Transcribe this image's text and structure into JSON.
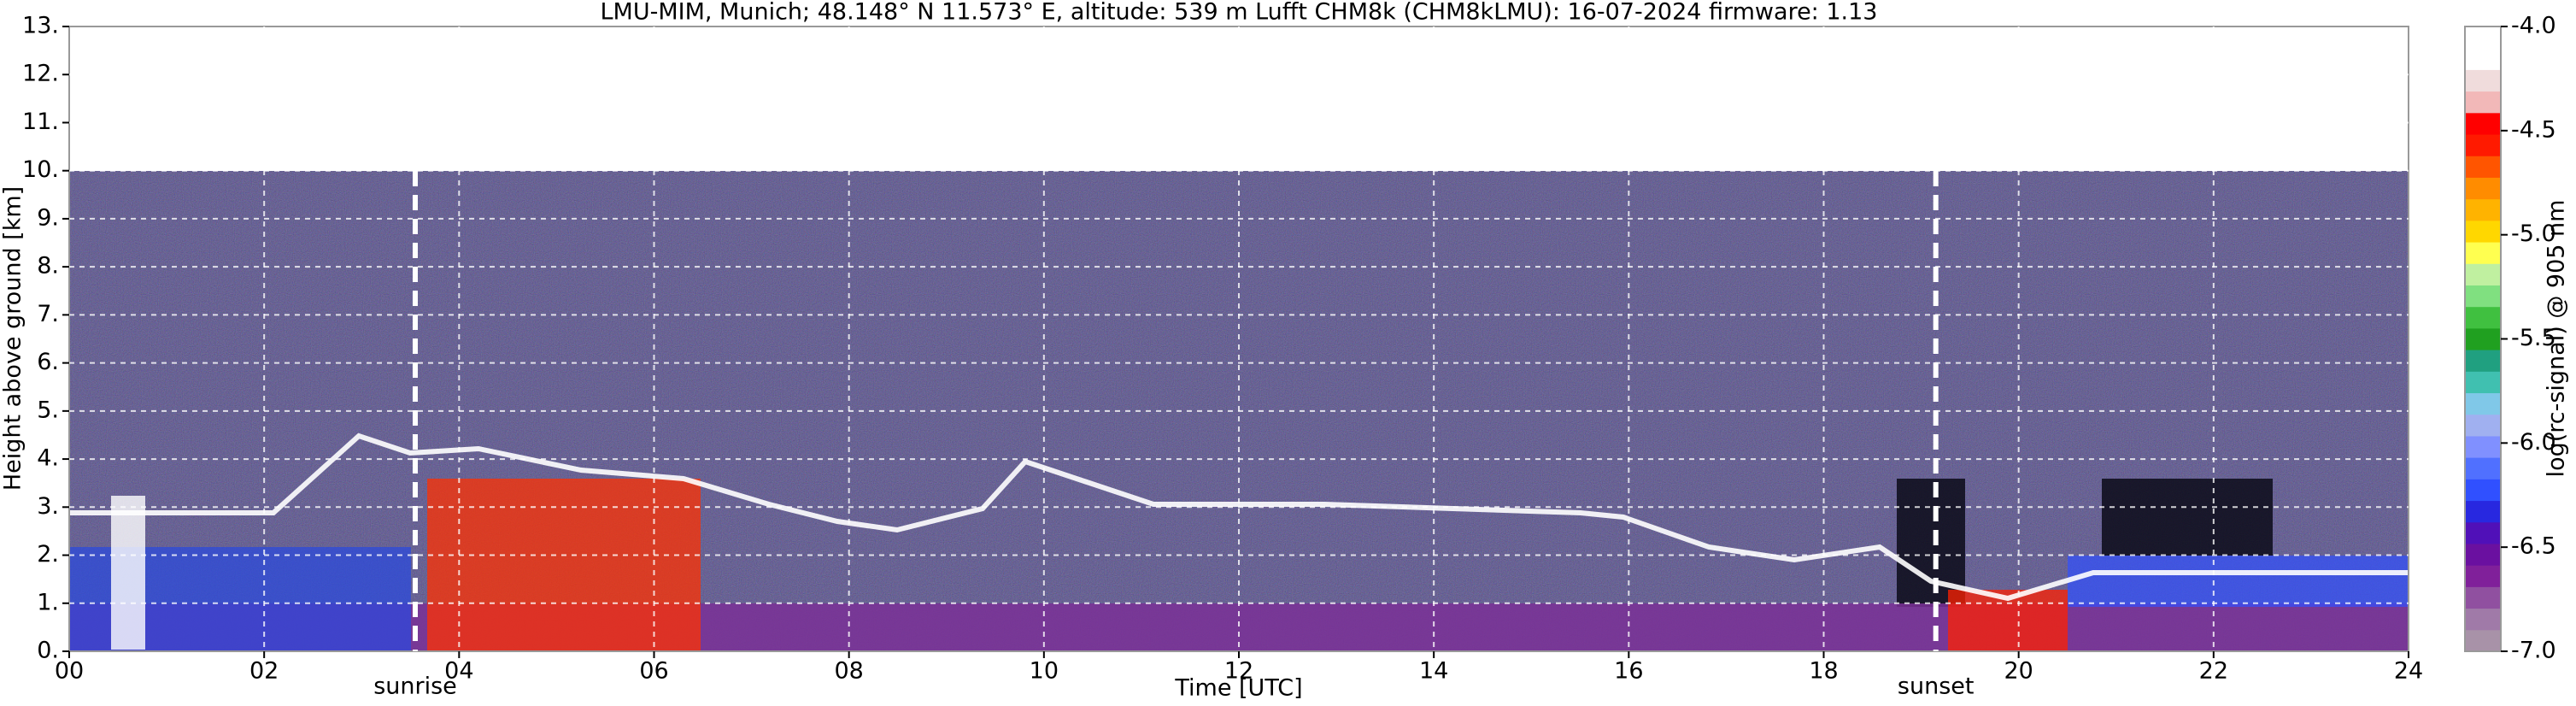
{
  "chart_data": {
    "type": "heatmap",
    "title": "LMU-MIM, Munich; 48.148° N 11.573° E, altitude: 539 m    Lufft CHM8k (CHM8kLMU): 16-07-2024    firmware: 1.13",
    "x_label": "Time [UTC]",
    "y_label": "Height above ground [km]",
    "xlim": [
      0,
      24
    ],
    "xticks": [
      {
        "value": 0,
        "label": "00"
      },
      {
        "value": 2,
        "label": "02"
      },
      {
        "value": 4,
        "label": "04"
      },
      {
        "value": 6,
        "label": "06"
      },
      {
        "value": 8,
        "label": "08"
      },
      {
        "value": 10,
        "label": "10"
      },
      {
        "value": 12,
        "label": "12"
      },
      {
        "value": 14,
        "label": "14"
      },
      {
        "value": 16,
        "label": "16"
      },
      {
        "value": 18,
        "label": "18"
      },
      {
        "value": 20,
        "label": "20"
      },
      {
        "value": 22,
        "label": "22"
      },
      {
        "value": 24,
        "label": "24"
      }
    ],
    "ylim": [
      0,
      13
    ],
    "yticks": [
      {
        "value": 0,
        "label": "0."
      },
      {
        "value": 1,
        "label": "1."
      },
      {
        "value": 2,
        "label": "2."
      },
      {
        "value": 3,
        "label": "3."
      },
      {
        "value": 4,
        "label": "4."
      },
      {
        "value": 5,
        "label": "5."
      },
      {
        "value": 6,
        "label": "6."
      },
      {
        "value": 7,
        "label": "7."
      },
      {
        "value": 8,
        "label": "8."
      },
      {
        "value": 9,
        "label": "9."
      },
      {
        "value": 10,
        "label": "10."
      },
      {
        "value": 11,
        "label": "11."
      },
      {
        "value": 12,
        "label": "12."
      },
      {
        "value": 13,
        "label": "13."
      }
    ],
    "grid": true,
    "annotations": [
      {
        "text": "sunrise",
        "x": 3.55
      },
      {
        "text": "sunset",
        "x": 19.15
      }
    ],
    "colorbar": {
      "label": "log(rc-signal) @ 905 nm",
      "lim": [
        -7,
        -4
      ],
      "ticks": [
        {
          "value": -4,
          "label": "-4.0"
        },
        {
          "value": -4.5,
          "label": "-4.5"
        },
        {
          "value": -5,
          "label": "-5.0"
        },
        {
          "value": -5.5,
          "label": "-5.5"
        },
        {
          "value": -6,
          "label": "-6.0"
        },
        {
          "value": -6.5,
          "label": "-6.5"
        },
        {
          "value": -7,
          "label": "-7.0"
        }
      ],
      "colors": [
        "#a892a8",
        "#a07aa8",
        "#9050a0",
        "#80209a",
        "#6a10a0",
        "#5010b8",
        "#2828e0",
        "#3050ff",
        "#5070ff",
        "#8090ff",
        "#a0b0f0",
        "#80c8e8",
        "#40c0b0",
        "#20a080",
        "#20a020",
        "#40c040",
        "#80e080",
        "#c0f0a0",
        "#ffff50",
        "#ffd700",
        "#ffb300",
        "#ff8c00",
        "#ff5500",
        "#ff1a00",
        "#ff0000",
        "#f2b8b8",
        "#f0dcdc",
        "#ffffff",
        "#ffffff"
      ]
    }
  }
}
